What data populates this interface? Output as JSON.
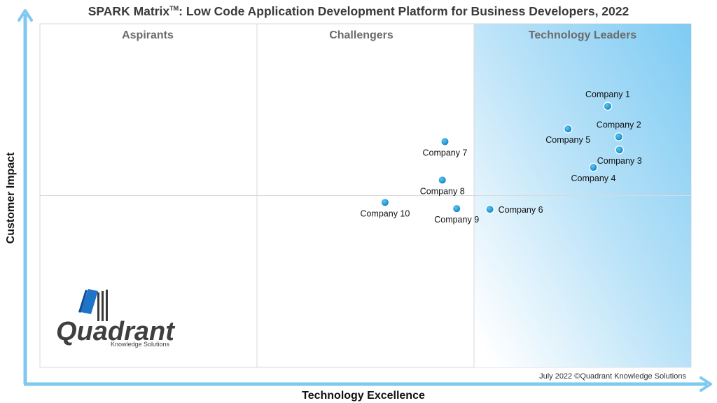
{
  "title": {
    "main": "SPARK Matrix",
    "tm": "TM",
    "rest": ": Low Code Application Development Platform for Business Developers, 2022"
  },
  "chart_data": {
    "type": "scatter",
    "quadrants": [
      "Aspirants",
      "Challengers",
      "Technology Leaders"
    ],
    "xlabel": "Technology Excellence",
    "ylabel": "Customer Impact",
    "xlim": [
      0,
      100
    ],
    "ylim": [
      0,
      100
    ],
    "grid": true,
    "points": [
      {
        "name": "Company 1",
        "x": 87.2,
        "y": 76.0,
        "label_pos": "above"
      },
      {
        "name": "Company 2",
        "x": 88.9,
        "y": 67.1,
        "label_pos": "above"
      },
      {
        "name": "Company 3",
        "x": 89.0,
        "y": 63.3,
        "label_pos": "below"
      },
      {
        "name": "Company 4",
        "x": 85.0,
        "y": 58.2,
        "label_pos": "below"
      },
      {
        "name": "Company 5",
        "x": 81.1,
        "y": 69.4,
        "label_pos": "below"
      },
      {
        "name": "Company 6",
        "x": 69.1,
        "y": 46.0,
        "label_pos": "right"
      },
      {
        "name": "Company 7",
        "x": 62.2,
        "y": 65.7,
        "label_pos": "below"
      },
      {
        "name": "Company 8",
        "x": 61.8,
        "y": 54.5,
        "label_pos": "below"
      },
      {
        "name": "Company 9",
        "x": 64.0,
        "y": 46.2,
        "label_pos": "below"
      },
      {
        "name": "Company 10",
        "x": 53.0,
        "y": 48.0,
        "label_pos": "below"
      }
    ]
  },
  "copyright": "July 2022 ©Quadrant Knowledge Solutions",
  "logo": {
    "name": "Quadrant",
    "tagline": "Knowledge Solutions"
  },
  "colors": {
    "axis": "#7fc9ef",
    "marker": "#1e9bd7",
    "leaders_dark": "#7ecbf3",
    "leaders_light": "#ffffff"
  }
}
